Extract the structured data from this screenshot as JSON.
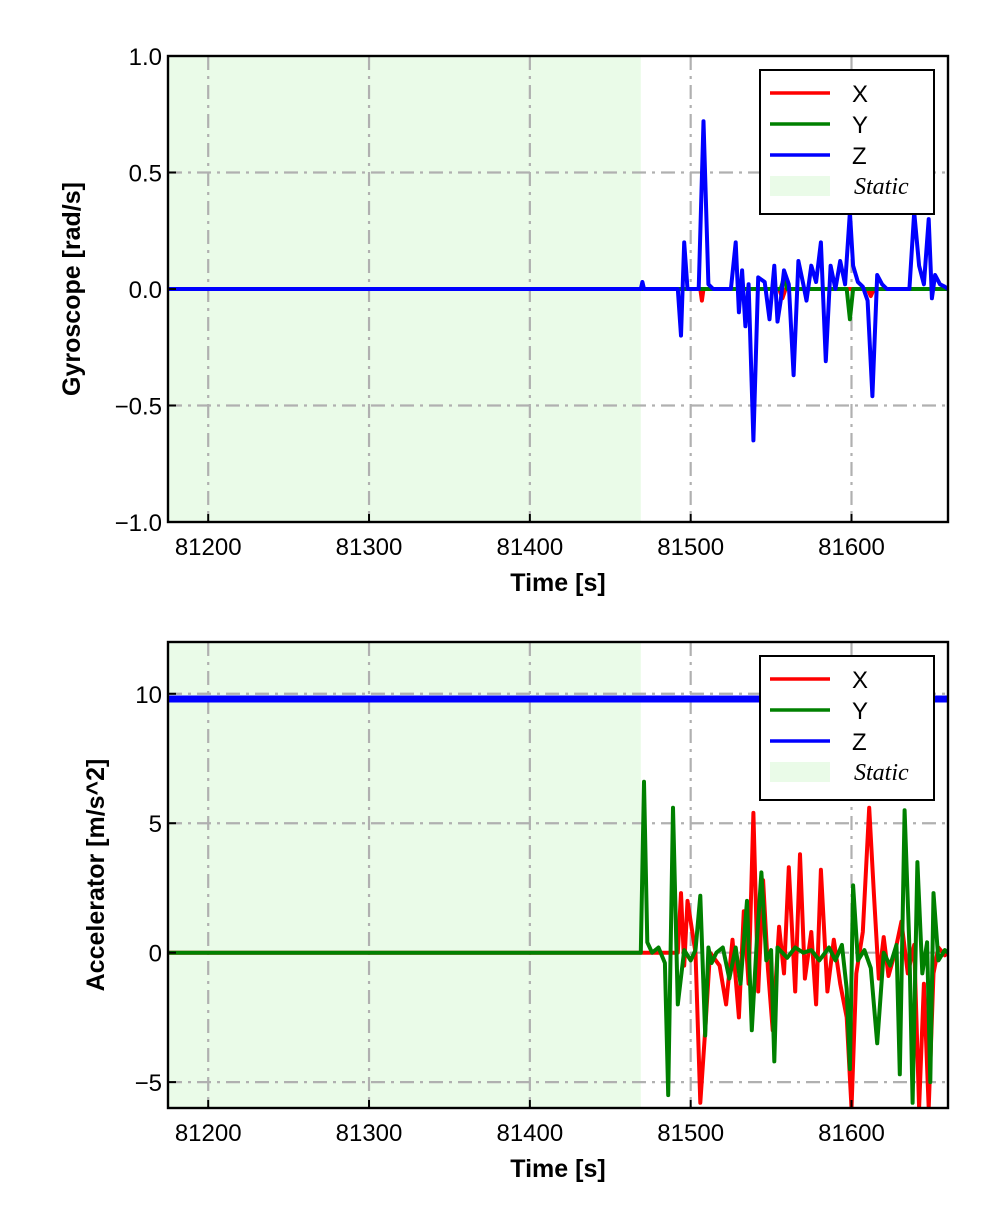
{
  "chart_data": [
    {
      "type": "line",
      "xlabel": "Time [s]",
      "ylabel": "Gyroscope [rad/s]",
      "xlim": [
        81175,
        81660
      ],
      "ylim": [
        -1.0,
        1.0
      ],
      "xticks": [
        81200,
        81300,
        81400,
        81500,
        81600
      ],
      "xtick_labels": [
        "81200",
        "81300",
        "81400",
        "81500",
        "81600"
      ],
      "yticks": [
        -1.0,
        -0.5,
        0.0,
        0.5,
        1.0
      ],
      "ytick_labels": [
        "−1.0",
        "−0.5",
        "0.0",
        "0.5",
        "1.0"
      ],
      "grid": true,
      "legend_position": "top-right",
      "static_region": {
        "label": "Static",
        "x_start": 81175,
        "x_end": 81469,
        "color": "#eafbe8"
      },
      "series": [
        {
          "name": "X",
          "color": "#ff0000",
          "x": [
            81175,
            81469,
            81490,
            81500,
            81506,
            81507,
            81508,
            81530,
            81555,
            81557,
            81559,
            81590,
            81610,
            81612,
            81614,
            81630,
            81660
          ],
          "y": [
            0,
            0,
            0,
            0,
            0,
            -0.05,
            0,
            0,
            0,
            -0.04,
            0,
            0,
            0,
            -0.03,
            0,
            0,
            0
          ]
        },
        {
          "name": "Y",
          "color": "#008000",
          "x": [
            81175,
            81469,
            81520,
            81556,
            81558,
            81560,
            81597,
            81599,
            81601,
            81660
          ],
          "y": [
            0,
            0,
            0,
            0,
            0.05,
            0,
            0,
            -0.13,
            0,
            0
          ]
        },
        {
          "name": "Z",
          "color": "#0000ff",
          "x": [
            81175,
            81469,
            81470,
            81471,
            81492,
            81494,
            81496,
            81498,
            81500,
            81505,
            81508,
            81511,
            81514,
            81525,
            81528,
            81530,
            81532,
            81534,
            81536,
            81539,
            81542,
            81546,
            81549,
            81552,
            81554,
            81556,
            81558,
            81561,
            81564,
            81567,
            81570,
            81572,
            81575,
            81578,
            81581,
            81584,
            81587,
            81590,
            81593,
            81596,
            81599,
            81601,
            81604,
            81607,
            81610,
            81613,
            81616,
            81619,
            81622,
            81630,
            81636,
            81639,
            81642,
            81645,
            81648,
            81650,
            81652,
            81655,
            81658,
            81660
          ],
          "y": [
            0,
            0,
            0.03,
            0,
            0,
            -0.2,
            0.2,
            0,
            0,
            0,
            0.72,
            0.02,
            0,
            0,
            0.2,
            -0.1,
            0.08,
            -0.16,
            0.02,
            -0.65,
            0.05,
            0.03,
            -0.13,
            0.1,
            -0.14,
            -0.05,
            0.08,
            0.02,
            -0.37,
            0.12,
            0.02,
            -0.05,
            0.1,
            0.03,
            0.2,
            -0.31,
            0.1,
            0,
            0.12,
            0.02,
            0.33,
            0.1,
            0.03,
            0.01,
            -0.05,
            -0.46,
            0.06,
            0.02,
            0,
            0,
            0,
            0.33,
            0.1,
            0.02,
            0.3,
            -0.04,
            0.06,
            0.02,
            0.01,
            0
          ]
        }
      ]
    },
    {
      "type": "line",
      "xlabel": "Time [s]",
      "ylabel": "Accelerator [m/s^2]",
      "xlim": [
        81175,
        81660
      ],
      "ylim": [
        -6,
        12
      ],
      "xticks": [
        81200,
        81300,
        81400,
        81500,
        81600
      ],
      "xtick_labels": [
        "81200",
        "81300",
        "81400",
        "81500",
        "81600"
      ],
      "yticks": [
        -5,
        0,
        5,
        10
      ],
      "ytick_labels": [
        "−5",
        "0",
        "5",
        "10"
      ],
      "grid": true,
      "legend_position": "top-right",
      "static_region": {
        "label": "Static",
        "x_start": 81175,
        "x_end": 81469,
        "color": "#eafbe8"
      },
      "series": [
        {
          "name": "X",
          "color": "#ff0000",
          "x": [
            81175,
            81469,
            81485,
            81492,
            81494,
            81496,
            81498,
            81503,
            81506,
            81509,
            81512,
            81518,
            81522,
            81526,
            81530,
            81533,
            81536,
            81539,
            81542,
            81545,
            81548,
            81551,
            81555,
            81558,
            81561,
            81565,
            81568,
            81571,
            81575,
            81578,
            81581,
            81585,
            81589,
            81593,
            81597,
            81600,
            81603,
            81607,
            81611,
            81614,
            81617,
            81620,
            81623,
            81627,
            81631,
            81635,
            81639,
            81642,
            81645,
            81648,
            81651,
            81654,
            81658,
            81660
          ],
          "y": [
            0,
            0,
            0,
            0,
            2.3,
            -0.5,
            2.0,
            0,
            -5.8,
            -3.0,
            0,
            -0.5,
            -2.0,
            0.5,
            -2.5,
            1.6,
            -1.2,
            5.4,
            -1.5,
            2.8,
            -0.6,
            -3.0,
            1.0,
            -0.8,
            3.3,
            -1.5,
            3.8,
            -1.0,
            0.8,
            -2.0,
            3.2,
            -1.5,
            0.5,
            -1.2,
            -2.5,
            -6.0,
            -0.8,
            0.8,
            5.6,
            2.2,
            -1.0,
            0.6,
            -0.9,
            0,
            1.2,
            -0.8,
            0.3,
            -6.0,
            -1.2,
            -6.0,
            -0.8,
            0.2,
            -0.1,
            0
          ]
        },
        {
          "name": "Y",
          "color": "#008000",
          "x": [
            81175,
            81469,
            81471,
            81473,
            81476,
            81480,
            81484,
            81486,
            81489,
            81492,
            81496,
            81500,
            81503,
            81506,
            81509,
            81511,
            81513,
            81516,
            81520,
            81524,
            81528,
            81531,
            81535,
            81538,
            81541,
            81544,
            81547,
            81550,
            81552,
            81554,
            81557,
            81560,
            81565,
            81570,
            81575,
            81580,
            81586,
            81590,
            81594,
            81597,
            81599,
            81601,
            81604,
            81608,
            81612,
            81616,
            81620,
            81624,
            81628,
            81630,
            81633,
            81636,
            81638,
            81641,
            81644,
            81647,
            81649,
            81651,
            81654,
            81658,
            81660
          ],
          "y": [
            0,
            0,
            6.6,
            0.4,
            0,
            0.2,
            -0.4,
            -5.5,
            5.6,
            -2.0,
            0.1,
            -0.3,
            0.1,
            2.2,
            -3.2,
            0.2,
            -0.4,
            0,
            0.2,
            -1.0,
            0.2,
            -1.2,
            2.0,
            -3.0,
            0.3,
            3.1,
            -0.3,
            0.1,
            -4.2,
            0.2,
            0,
            -0.2,
            0.2,
            0,
            0.1,
            -0.3,
            0.2,
            -0.3,
            0.3,
            -1.4,
            -4.5,
            2.6,
            -0.3,
            0.1,
            -0.6,
            -3.5,
            0,
            -0.5,
            0.3,
            -4.7,
            5.5,
            0.2,
            -5.8,
            3.5,
            -0.8,
            0.4,
            -5.0,
            2.3,
            -0.3,
            0.1,
            0
          ]
        },
        {
          "name": "Z",
          "color": "#0000ff",
          "x": [
            81175,
            81660
          ],
          "y": [
            9.8,
            9.8
          ]
        }
      ]
    }
  ]
}
